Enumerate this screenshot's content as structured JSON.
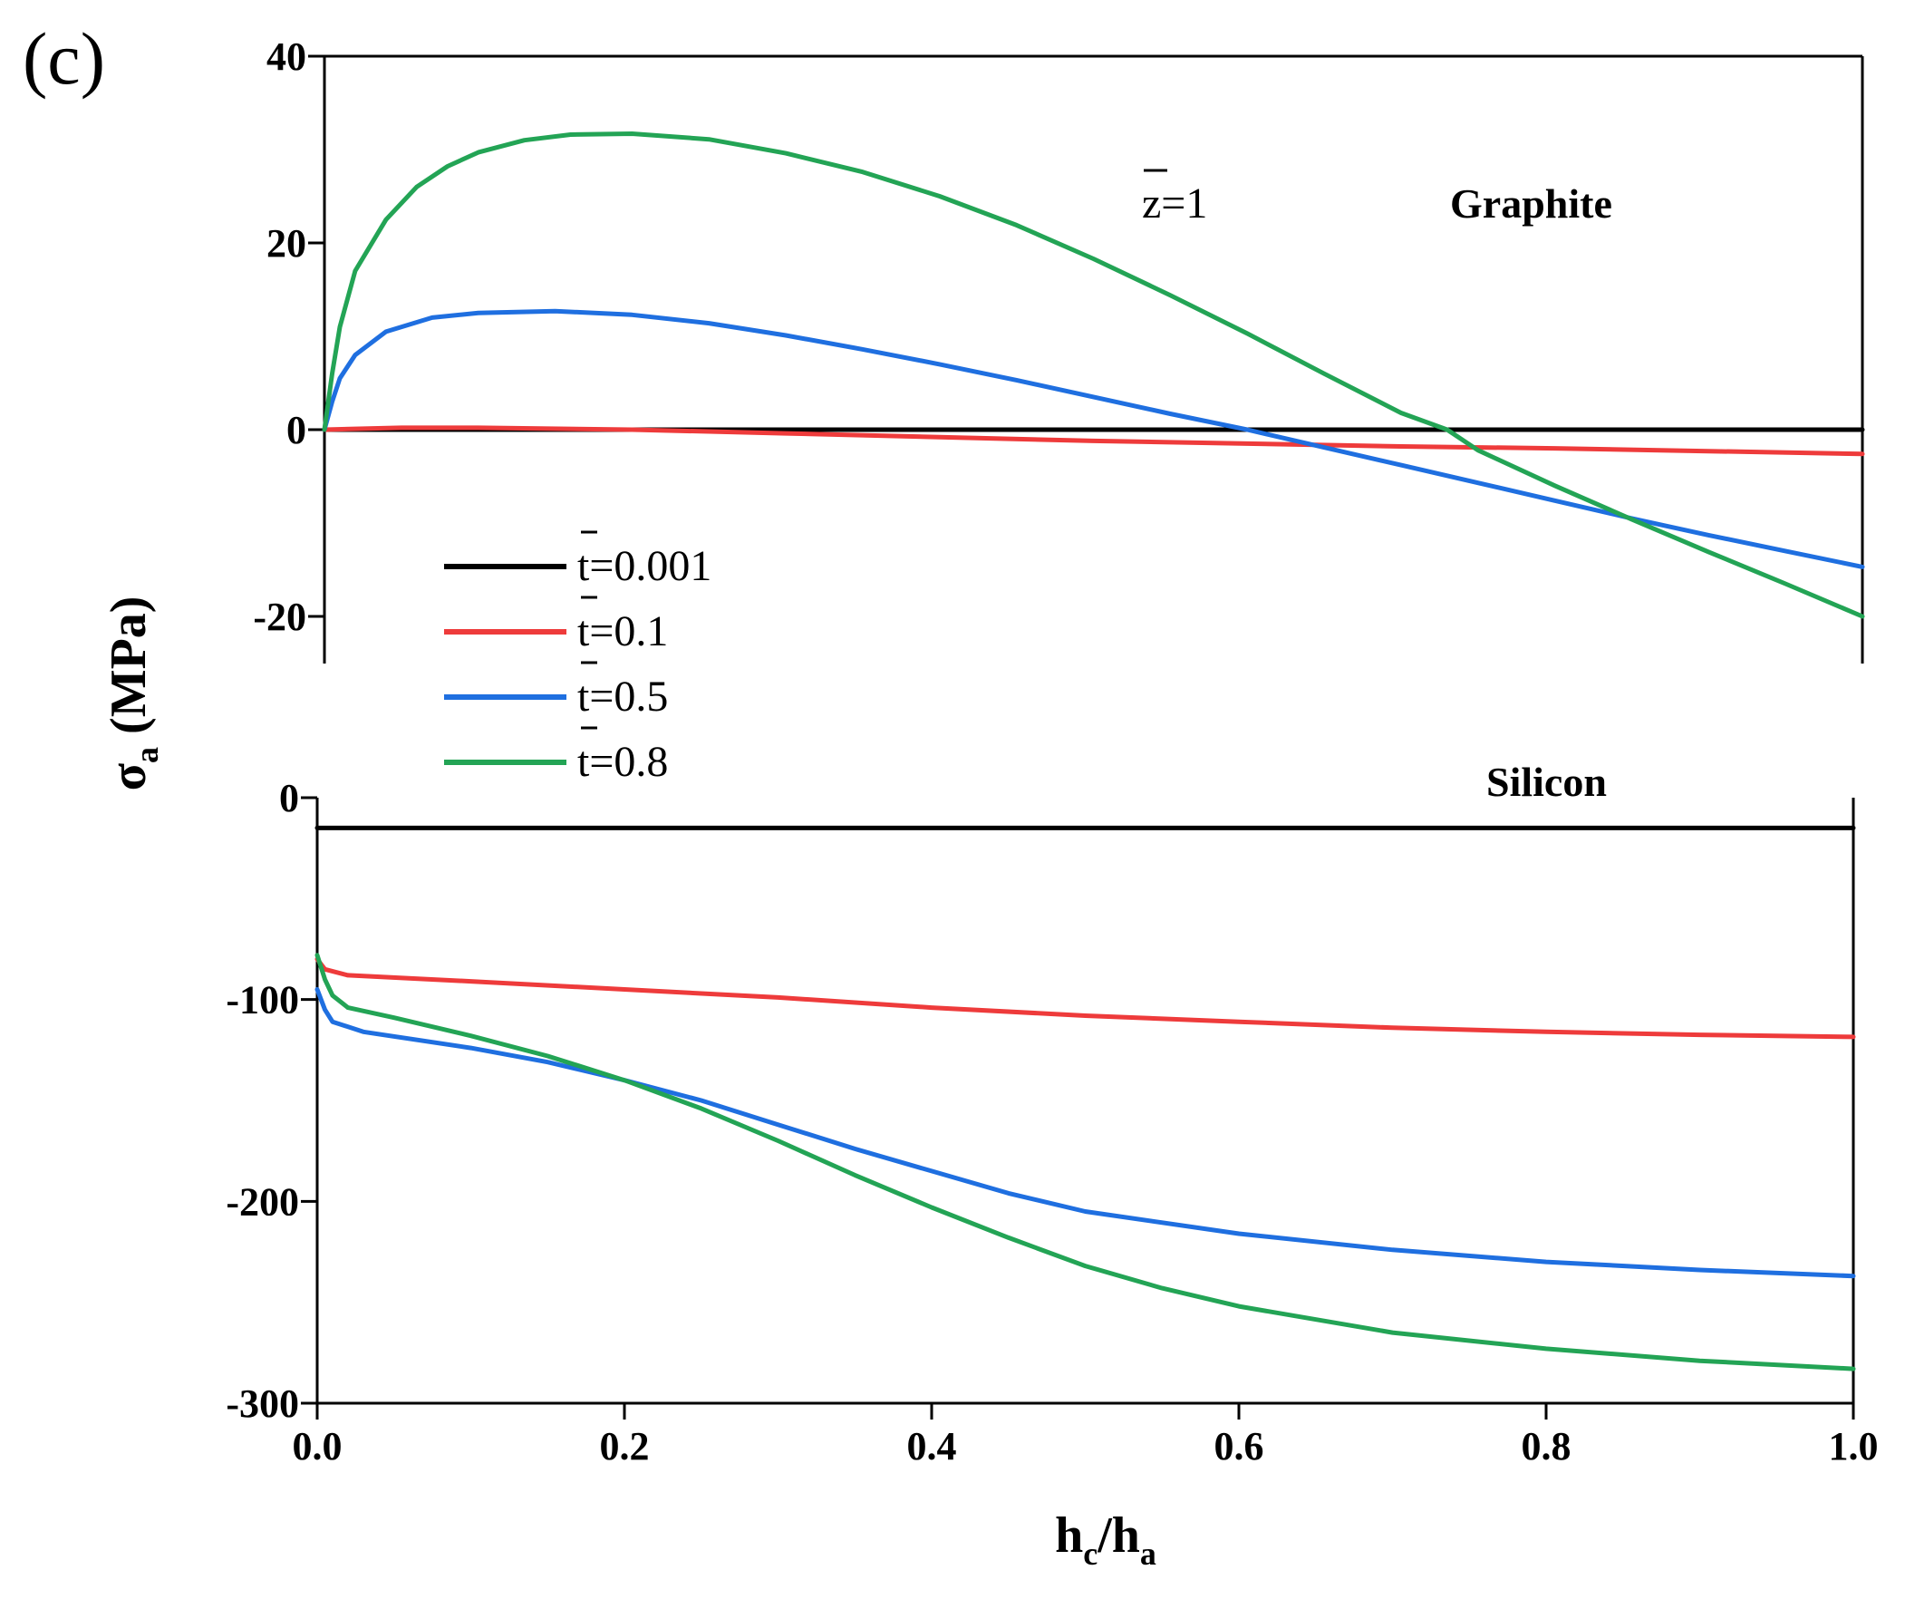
{
  "panel_label": "(c)",
  "annotation_z": "z=1",
  "chart_data": {
    "type": "line",
    "xlabel": "hc/ha",
    "ylabel": "σa (MPa)",
    "xlim": [
      0.0,
      1.0
    ],
    "x_ticks": [
      "0.0",
      "0.2",
      "0.4",
      "0.6",
      "0.8",
      "1.0"
    ],
    "legend": {
      "position": "center-left",
      "entries": [
        "t=0.001",
        "t=0.1",
        "t=0.5",
        "t=0.8"
      ]
    },
    "colors": {
      "t=0.001": "#000000",
      "t=0.1": "#ee3b3b",
      "t=0.5": "#1f6fe0",
      "t=0.8": "#23a455"
    },
    "panels": [
      {
        "title": "Graphite",
        "ylim": [
          -25,
          40
        ],
        "y_ticks": [
          "40",
          "20",
          "0",
          "-20"
        ],
        "series": [
          {
            "name": "t=0.001",
            "points": [
              [
                0,
                0
              ],
              [
                0.2,
                0
              ],
              [
                0.4,
                0
              ],
              [
                0.6,
                0
              ],
              [
                0.8,
                0
              ],
              [
                1.0,
                0
              ]
            ]
          },
          {
            "name": "t=0.1",
            "points": [
              [
                0,
                0
              ],
              [
                0.05,
                0.2
              ],
              [
                0.1,
                0.2
              ],
              [
                0.2,
                0
              ],
              [
                0.3,
                -0.4
              ],
              [
                0.4,
                -0.8
              ],
              [
                0.5,
                -1.2
              ],
              [
                0.6,
                -1.5
              ],
              [
                0.7,
                -1.8
              ],
              [
                0.8,
                -2.0
              ],
              [
                0.9,
                -2.3
              ],
              [
                1.0,
                -2.6
              ]
            ]
          },
          {
            "name": "t=0.5",
            "points": [
              [
                0,
                0
              ],
              [
                0.005,
                3
              ],
              [
                0.01,
                5.5
              ],
              [
                0.02,
                8
              ],
              [
                0.04,
                10.5
              ],
              [
                0.07,
                12
              ],
              [
                0.1,
                12.5
              ],
              [
                0.15,
                12.7
              ],
              [
                0.2,
                12.3
              ],
              [
                0.25,
                11.4
              ],
              [
                0.3,
                10.1
              ],
              [
                0.35,
                8.6
              ],
              [
                0.4,
                7.0
              ],
              [
                0.45,
                5.3
              ],
              [
                0.5,
                3.5
              ],
              [
                0.55,
                1.7
              ],
              [
                0.6,
                0
              ],
              [
                0.65,
                -1.9
              ],
              [
                0.7,
                -3.8
              ],
              [
                0.75,
                -5.7
              ],
              [
                0.8,
                -7.6
              ],
              [
                0.85,
                -9.5
              ],
              [
                0.9,
                -11.3
              ],
              [
                0.95,
                -13.0
              ],
              [
                1.0,
                -14.7
              ]
            ]
          },
          {
            "name": "t=0.8",
            "points": [
              [
                0,
                0
              ],
              [
                0.005,
                6
              ],
              [
                0.01,
                11
              ],
              [
                0.02,
                17
              ],
              [
                0.04,
                22.5
              ],
              [
                0.06,
                26
              ],
              [
                0.08,
                28.2
              ],
              [
                0.1,
                29.7
              ],
              [
                0.13,
                31
              ],
              [
                0.16,
                31.6
              ],
              [
                0.2,
                31.7
              ],
              [
                0.25,
                31.1
              ],
              [
                0.3,
                29.6
              ],
              [
                0.35,
                27.6
              ],
              [
                0.4,
                25.0
              ],
              [
                0.45,
                21.9
              ],
              [
                0.5,
                18.3
              ],
              [
                0.55,
                14.4
              ],
              [
                0.6,
                10.3
              ],
              [
                0.65,
                6.0
              ],
              [
                0.7,
                1.8
              ],
              [
                0.73,
                0
              ],
              [
                0.75,
                -2.2
              ],
              [
                0.8,
                -6.0
              ],
              [
                0.85,
                -9.6
              ],
              [
                0.9,
                -13.1
              ],
              [
                0.95,
                -16.5
              ],
              [
                1.0,
                -20.0
              ]
            ]
          }
        ]
      },
      {
        "title": "Silicon",
        "ylim": [
          -300,
          0
        ],
        "y_ticks": [
          "0",
          "-100",
          "-200",
          "-300"
        ],
        "series": [
          {
            "name": "t=0.001",
            "points": [
              [
                0,
                -15
              ],
              [
                0.2,
                -15
              ],
              [
                0.4,
                -15
              ],
              [
                0.6,
                -15
              ],
              [
                0.8,
                -15
              ],
              [
                1.0,
                -15
              ]
            ]
          },
          {
            "name": "t=0.1",
            "points": [
              [
                0,
                -80
              ],
              [
                0.005,
                -85
              ],
              [
                0.02,
                -88
              ],
              [
                0.1,
                -91
              ],
              [
                0.2,
                -95
              ],
              [
                0.3,
                -99
              ],
              [
                0.4,
                -104
              ],
              [
                0.5,
                -108
              ],
              [
                0.6,
                -111
              ],
              [
                0.7,
                -114
              ],
              [
                0.8,
                -116
              ],
              [
                0.9,
                -117.5
              ],
              [
                1.0,
                -118.5
              ]
            ]
          },
          {
            "name": "t=0.5",
            "points": [
              [
                0,
                -95
              ],
              [
                0.005,
                -105
              ],
              [
                0.01,
                -111
              ],
              [
                0.03,
                -116
              ],
              [
                0.1,
                -124
              ],
              [
                0.15,
                -131
              ],
              [
                0.2,
                -140
              ],
              [
                0.25,
                -150
              ],
              [
                0.3,
                -162
              ],
              [
                0.35,
                -174
              ],
              [
                0.4,
                -185
              ],
              [
                0.45,
                -196
              ],
              [
                0.5,
                -205
              ],
              [
                0.6,
                -216
              ],
              [
                0.7,
                -224
              ],
              [
                0.8,
                -230
              ],
              [
                0.9,
                -234
              ],
              [
                1.0,
                -237
              ]
            ]
          },
          {
            "name": "t=0.8",
            "points": [
              [
                0,
                -78
              ],
              [
                0.005,
                -90
              ],
              [
                0.01,
                -98
              ],
              [
                0.02,
                -104
              ],
              [
                0.05,
                -109
              ],
              [
                0.1,
                -118
              ],
              [
                0.15,
                -128
              ],
              [
                0.2,
                -140
              ],
              [
                0.25,
                -154
              ],
              [
                0.3,
                -170
              ],
              [
                0.35,
                -187
              ],
              [
                0.4,
                -203
              ],
              [
                0.45,
                -218
              ],
              [
                0.5,
                -232
              ],
              [
                0.55,
                -243
              ],
              [
                0.6,
                -252
              ],
              [
                0.7,
                -265
              ],
              [
                0.8,
                -273
              ],
              [
                0.9,
                -279
              ],
              [
                1.0,
                -283
              ]
            ]
          }
        ]
      }
    ]
  }
}
